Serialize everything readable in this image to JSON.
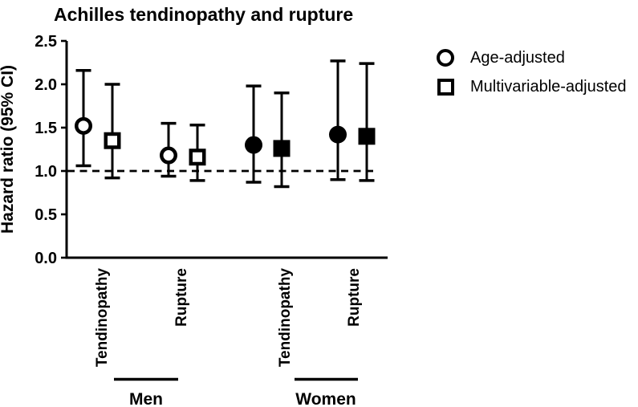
{
  "figure": {
    "background": "#ffffff",
    "ink": "#000000"
  },
  "legend": {
    "position": "top-right",
    "items": [
      {
        "marker": "open-circle",
        "label": "Age-adjusted"
      },
      {
        "marker": "open-square",
        "label": "Multivariable-adjusted"
      }
    ]
  },
  "chart_data": {
    "type": "scatter",
    "subtype": "forest-plot-vertical-errorbars",
    "title": "Achilles tendinopathy and rupture",
    "xlabel": "",
    "ylabel": "Hazard ratio (95% CI)",
    "ylim": [
      0.0,
      2.5
    ],
    "yticks": [
      0.0,
      0.5,
      1.0,
      1.5,
      2.0,
      2.5
    ],
    "ytick_labels": [
      "0.0",
      "0.5",
      "1.0",
      "1.5",
      "2.0",
      "2.5"
    ],
    "reference_line_y": 1.0,
    "reference_line_style": "dashed",
    "grid": false,
    "legend_entries": [
      "Age-adjusted",
      "Multivariable-adjusted"
    ],
    "marker_by_series": {
      "Age-adjusted": "circle",
      "Multivariable-adjusted": "square"
    },
    "marker_fill_by_group": {
      "Men": "open",
      "Women": "filled"
    },
    "groups": [
      {
        "label": "Men",
        "categories": [
          {
            "label": "Tendinopathy",
            "points": [
              {
                "series": "Age-adjusted",
                "marker": "circle",
                "fill": "open",
                "hr": 1.52,
                "ci_low": 1.06,
                "ci_high": 2.16
              },
              {
                "series": "Multivariable-adjusted",
                "marker": "square",
                "fill": "open",
                "hr": 1.35,
                "ci_low": 0.92,
                "ci_high": 2.0
              }
            ]
          },
          {
            "label": "Rupture",
            "points": [
              {
                "series": "Age-adjusted",
                "marker": "circle",
                "fill": "open",
                "hr": 1.18,
                "ci_low": 0.94,
                "ci_high": 1.55
              },
              {
                "series": "Multivariable-adjusted",
                "marker": "square",
                "fill": "open",
                "hr": 1.16,
                "ci_low": 0.89,
                "ci_high": 1.53
              }
            ]
          }
        ]
      },
      {
        "label": "Women",
        "categories": [
          {
            "label": "Tendinopathy",
            "points": [
              {
                "series": "Age-adjusted",
                "marker": "circle",
                "fill": "filled",
                "hr": 1.3,
                "ci_low": 0.87,
                "ci_high": 1.98
              },
              {
                "series": "Multivariable-adjusted",
                "marker": "square",
                "fill": "filled",
                "hr": 1.26,
                "ci_low": 0.82,
                "ci_high": 1.9
              }
            ]
          },
          {
            "label": "Rupture",
            "points": [
              {
                "series": "Age-adjusted",
                "marker": "circle",
                "fill": "filled",
                "hr": 1.42,
                "ci_low": 0.9,
                "ci_high": 2.27
              },
              {
                "series": "Multivariable-adjusted",
                "marker": "square",
                "fill": "filled",
                "hr": 1.4,
                "ci_low": 0.89,
                "ci_high": 2.24
              }
            ]
          }
        ]
      }
    ]
  }
}
